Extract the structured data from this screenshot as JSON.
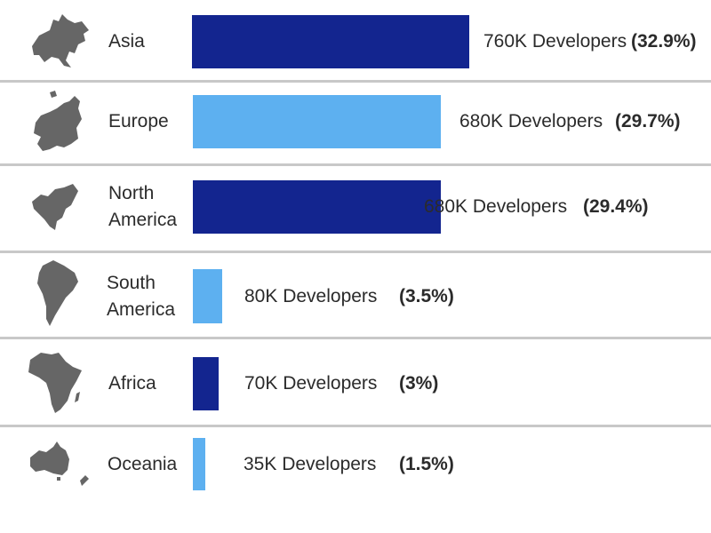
{
  "colors": {
    "dark": "#13258f",
    "light": "#5db0f0",
    "icon": "#666666"
  },
  "chart_data": {
    "type": "bar",
    "orientation": "horizontal",
    "categories": [
      "Asia",
      "Europe",
      "North America",
      "South America",
      "Africa",
      "Oceania"
    ],
    "values": [
      760,
      680,
      680,
      80,
      70,
      35
    ],
    "value_labels": [
      "760K Developers",
      "680K Developers",
      "680K Developers",
      "80K Developers",
      "70K Developers",
      "35K Developers"
    ],
    "percent_labels": [
      "(32.9%)",
      "(29.7%)",
      "(29.4%)",
      "(3.5%)",
      "(3%)",
      "(1.5%)"
    ],
    "bar_colors": [
      "dark",
      "light",
      "dark",
      "light",
      "dark",
      "light"
    ]
  },
  "rows": [
    {
      "label_lines": [
        "Asia"
      ],
      "icon": "asia-map-icon"
    },
    {
      "label_lines": [
        "Europe"
      ],
      "icon": "europe-map-icon"
    },
    {
      "label_lines": [
        "North",
        "America"
      ],
      "icon": "north-america-map-icon"
    },
    {
      "label_lines": [
        "South",
        "America"
      ],
      "icon": "south-america-map-icon"
    },
    {
      "label_lines": [
        "Africa"
      ],
      "icon": "africa-map-icon"
    },
    {
      "label_lines": [
        "Oceania"
      ],
      "icon": "oceania-map-icon"
    }
  ]
}
